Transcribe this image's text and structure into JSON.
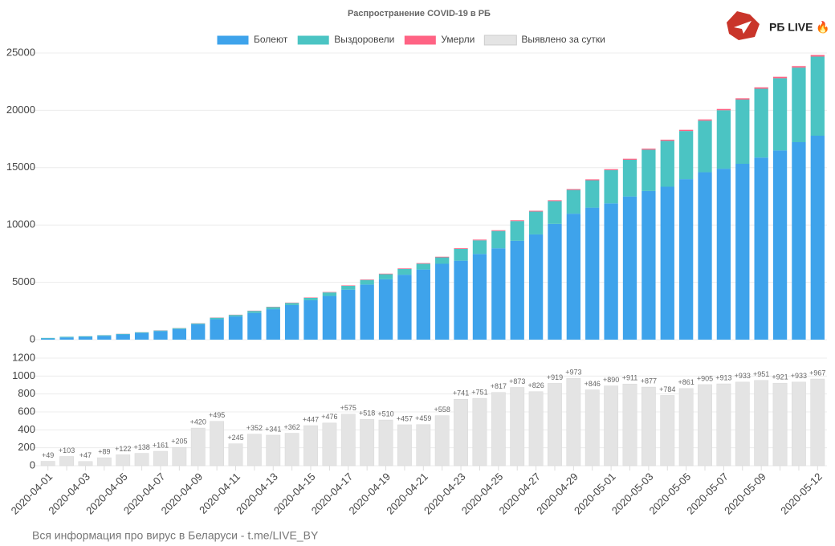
{
  "brand": "РБ LIVE 🔥",
  "footer": "Вся информация про вирус в Беларуси - t.me/LIVE_BY",
  "chart_data": [
    {
      "type": "stacked_bar",
      "title": "Распространение COVID-19 в РБ",
      "ylim": [
        0,
        25000
      ],
      "yticks": [
        0,
        5000,
        10000,
        15000,
        20000,
        25000
      ],
      "grid": true,
      "series": [
        {
          "name": "Болеют",
          "color": "#3ea3eb",
          "values": [
            102,
            199,
            245,
            333,
            452,
            590,
            746,
            929,
            1346,
            1781,
            2024,
            2335,
            2656,
            3015,
            3436,
            3813,
            4363,
            4807,
            5265,
            5663,
            6118,
            6618,
            6887,
            7476,
            7969,
            8624,
            9178,
            10094,
            10985,
            11513,
            11884,
            12490,
            12963,
            13341,
            13998,
            14599,
            14907,
            15336,
            15882,
            16500,
            17226,
            17787
          ]
        },
        {
          "name": "Выздоровели",
          "color": "#4bc4c3",
          "values": [
            48,
            53,
            53,
            53,
            53,
            53,
            53,
            75,
            75,
            132,
            132,
            171,
            188,
            188,
            210,
            306,
            327,
            399,
            448,
            505,
            505,
            559,
            1028,
            1188,
            1509,
            1723,
            1993,
            1993,
            2072,
            2386,
            2900,
            3200,
            3600,
            4000,
            4200,
            4500,
            5100,
            5600,
            6000,
            6300,
            6500,
            6900
          ]
        },
        {
          "name": "Умерли",
          "color": "#ff6384",
          "values": [
            2,
            3,
            4,
            5,
            8,
            8,
            13,
            13,
            16,
            19,
            21,
            23,
            26,
            29,
            33,
            36,
            40,
            42,
            45,
            47,
            51,
            55,
            58,
            60,
            63,
            67,
            69,
            72,
            75,
            79,
            84,
            89,
            93,
            99,
            103,
            107,
            112,
            116,
            121,
            124,
            131,
            137
          ]
        }
      ]
    },
    {
      "type": "bar",
      "categories": [
        "2020-04-01",
        null,
        "2020-04-03",
        null,
        "2020-04-05",
        null,
        "2020-04-07",
        null,
        "2020-04-09",
        null,
        "2020-04-11",
        null,
        "2020-04-13",
        null,
        "2020-04-15",
        null,
        "2020-04-17",
        null,
        "2020-04-19",
        null,
        "2020-04-21",
        null,
        "2020-04-23",
        null,
        "2020-04-25",
        null,
        "2020-04-27",
        null,
        "2020-04-29",
        null,
        "2020-05-01",
        null,
        "2020-05-03",
        null,
        "2020-05-05",
        null,
        "2020-05-07",
        null,
        "2020-05-09",
        null,
        null,
        "2020-05-12"
      ],
      "ylim": [
        0,
        1200
      ],
      "yticks": [
        0,
        200,
        400,
        600,
        800,
        1000,
        1200
      ],
      "grid": true,
      "series": [
        {
          "name": "Выявлено за сутки",
          "color": "#e4e4e4",
          "values": [
            49,
            103,
            47,
            89,
            122,
            138,
            161,
            205,
            420,
            495,
            245,
            352,
            341,
            362,
            447,
            476,
            575,
            518,
            510,
            457,
            459,
            558,
            741,
            751,
            817,
            873,
            826,
            919,
            973,
            846,
            890,
            911,
            877,
            784,
            861,
            905,
            913,
            933,
            951,
            921,
            933,
            967
          ],
          "value_labels": [
            "+49",
            "+103",
            "+47",
            "+89",
            "+122",
            "+138",
            "+161",
            "+205",
            "+420",
            "+495",
            "+245",
            "+352",
            "+341",
            "+362",
            "+447",
            "+476",
            "+575",
            "+518",
            "+510",
            "+457",
            "+459",
            "+558",
            "+741",
            "+751",
            "+817",
            "+873",
            "+826",
            "+919",
            "+973",
            "+846",
            "+890",
            "+911",
            "+877",
            "+784",
            "+861",
            "+905",
            "+913",
            "+933",
            "+951",
            "+921",
            "+933",
            "+967"
          ]
        }
      ]
    }
  ]
}
